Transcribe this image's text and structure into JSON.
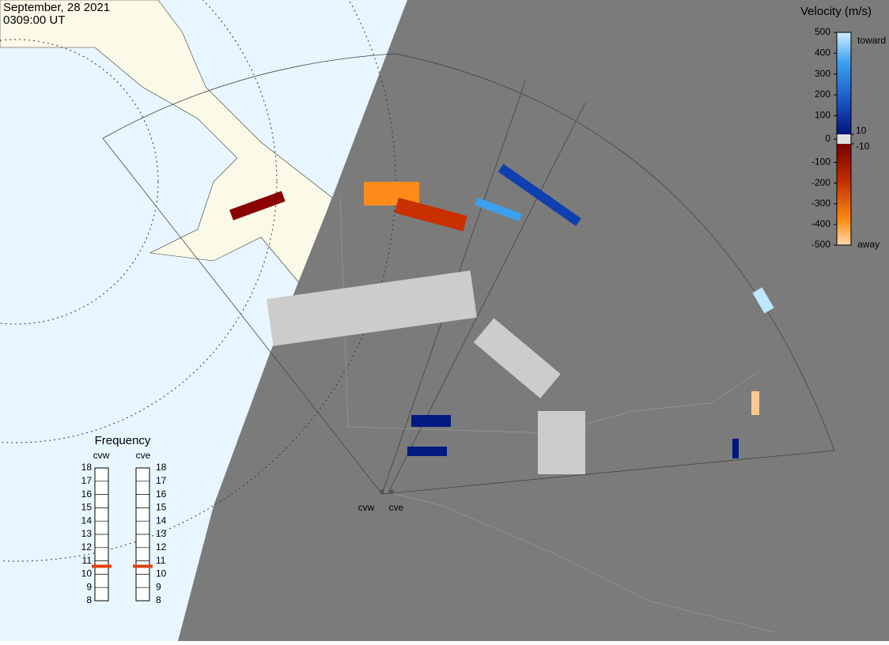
{
  "header": {
    "date": "September, 28 2021",
    "time": "0309:00 UT"
  },
  "velocity_scale": {
    "title": "Velocity (m/s)",
    "ticks": [
      500,
      400,
      300,
      200,
      100,
      0,
      -100,
      -200,
      -300,
      -400,
      -500
    ],
    "inner_ticks": [
      10,
      -10
    ],
    "toward": "toward",
    "away": "away"
  },
  "frequency": {
    "title": "Frequency",
    "ticks": [
      8,
      9,
      10,
      11,
      12,
      13,
      14,
      15,
      16,
      17,
      18
    ],
    "radars": [
      {
        "name": "cvw",
        "value": 10.6
      },
      {
        "name": "cve",
        "value": 10.6
      }
    ]
  },
  "radar_sites": [
    "cvw",
    "cve"
  ]
}
